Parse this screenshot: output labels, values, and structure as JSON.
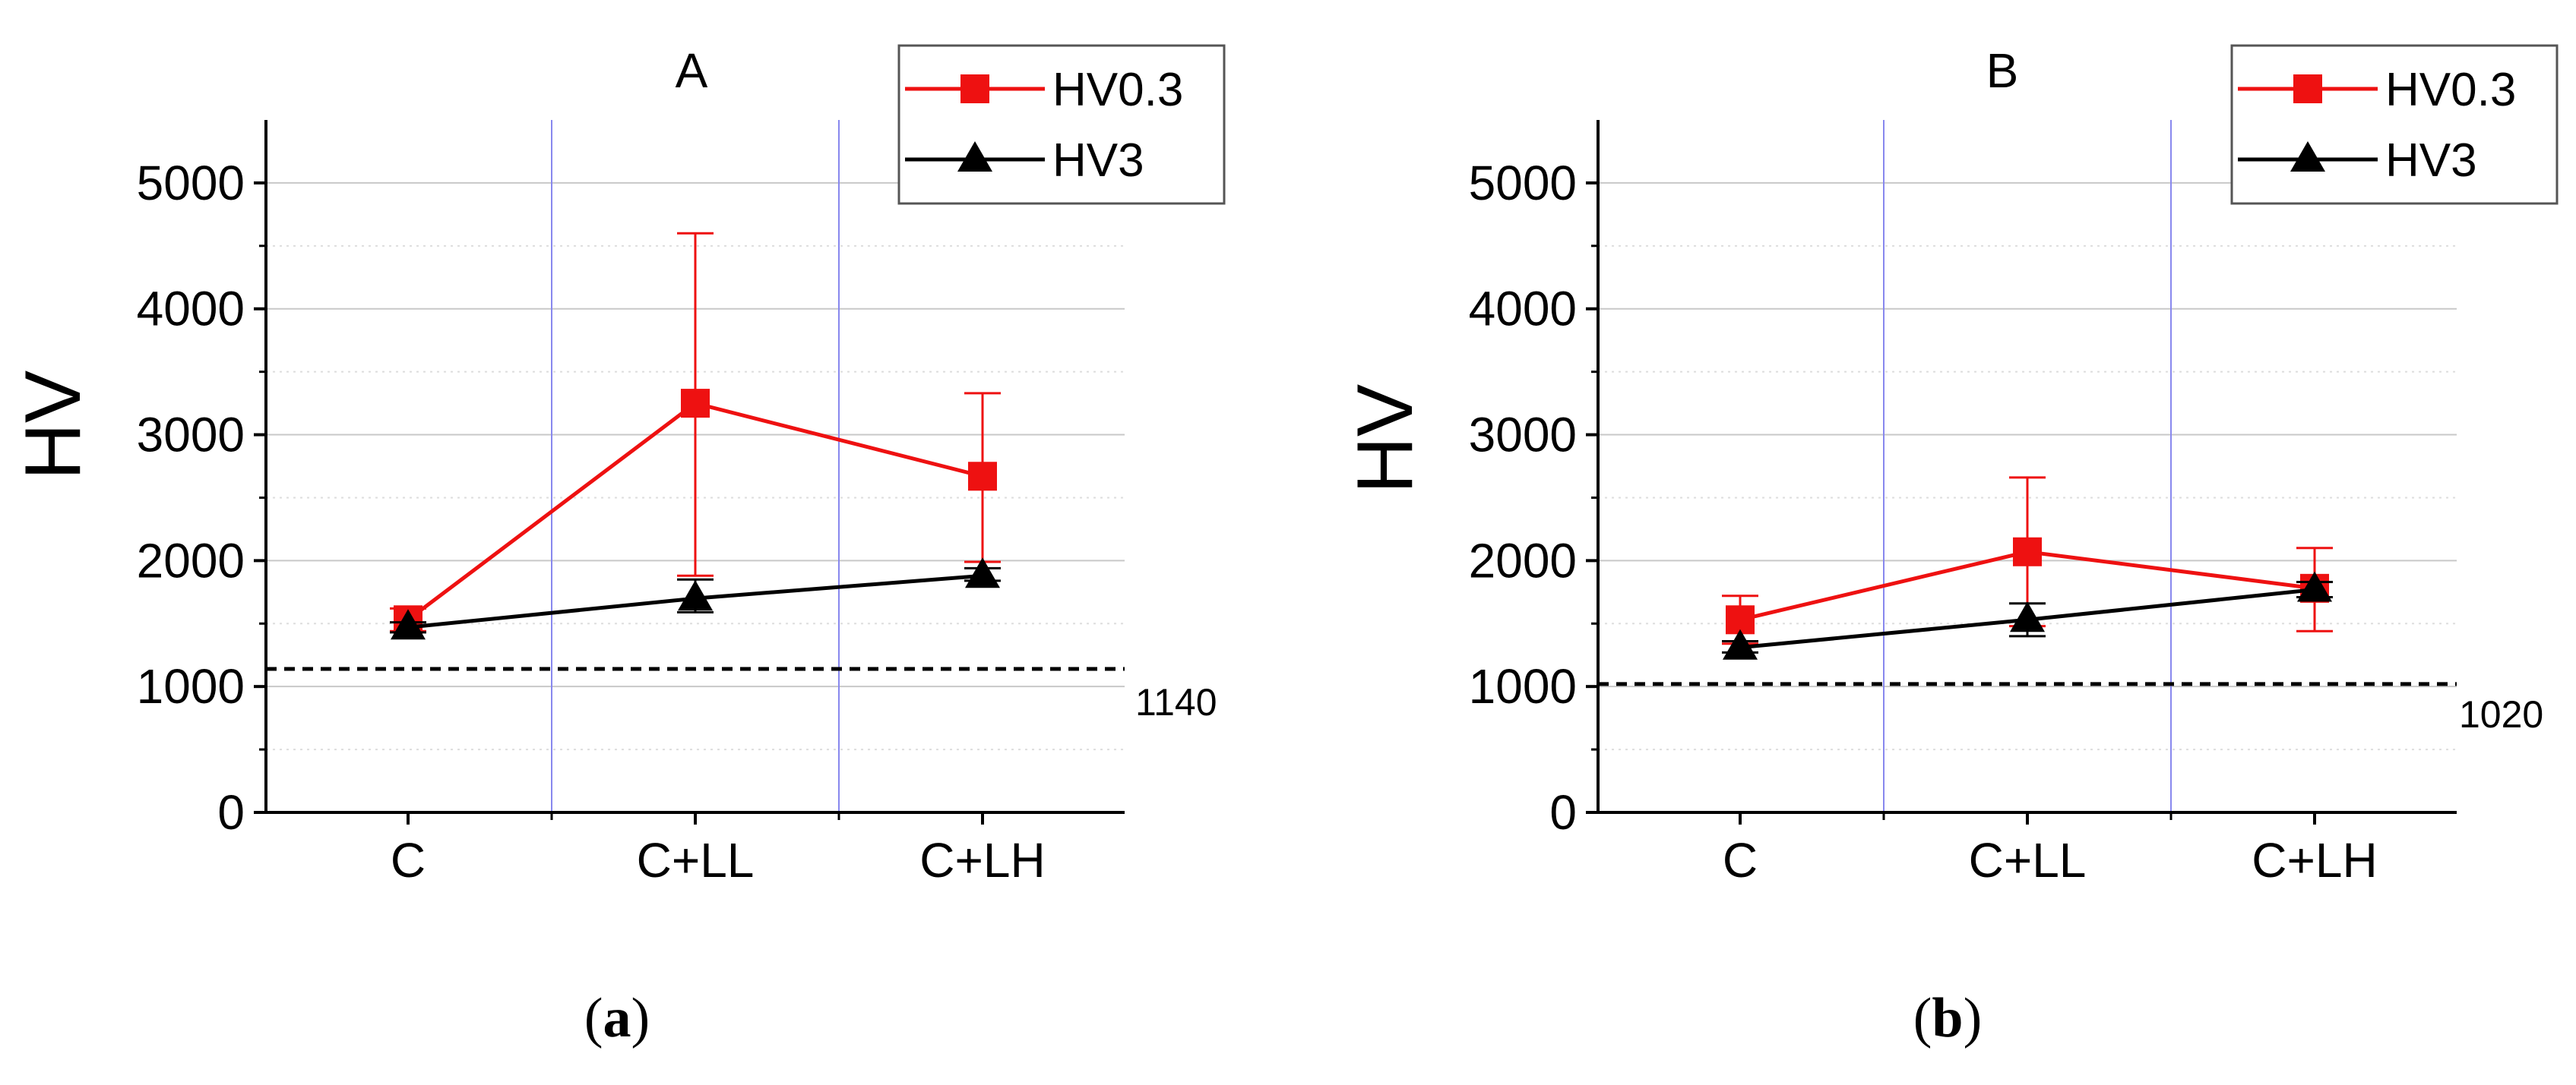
{
  "colors": {
    "hv03": "#ee1111",
    "hv3": "#000000",
    "grid": "#c8c8c8",
    "minor_grid": "#dddddd",
    "separator": "#8888ee",
    "threshold": "#000000",
    "legend_border": "#555555"
  },
  "chart_data": [
    {
      "type": "line",
      "title": "A",
      "caption_open": "(",
      "caption_letter": "a",
      "caption_close": ")",
      "ylabel": "HV",
      "xlabel": "",
      "categories": [
        "C",
        "C+LL",
        "C+LH"
      ],
      "ylim": [
        0,
        5500
      ],
      "yticks": [
        0,
        1000,
        2000,
        3000,
        4000,
        5000
      ],
      "ytick_labels": [
        "0",
        "1000",
        "2000",
        "3000",
        "4000",
        "5000"
      ],
      "minor_yticks": [
        500,
        1500,
        2500,
        3500,
        4500
      ],
      "legend_position": "top-right",
      "series": [
        {
          "name": "HV0.3",
          "marker": "square",
          "color": "#ee1111",
          "values": [
            1530,
            3250,
            2670
          ],
          "err_low": [
            1440,
            1880,
            1990
          ],
          "err_high": [
            1620,
            4600,
            3330
          ]
        },
        {
          "name": "HV3",
          "marker": "triangle",
          "color": "#000000",
          "values": [
            1470,
            1700,
            1880
          ],
          "err_low": [
            1430,
            1590,
            1840
          ],
          "err_high": [
            1510,
            1850,
            1940
          ]
        }
      ],
      "reference_line": {
        "value": 1140,
        "label": "1140"
      }
    },
    {
      "type": "line",
      "title": "B",
      "caption_open": "(",
      "caption_letter": "b",
      "caption_close": ")",
      "ylabel": "HV",
      "xlabel": "",
      "categories": [
        "C",
        "C+LL",
        "C+LH"
      ],
      "ylim": [
        0,
        5500
      ],
      "yticks": [
        0,
        1000,
        2000,
        3000,
        4000,
        5000
      ],
      "ytick_labels": [
        "0",
        "1000",
        "2000",
        "3000",
        "4000",
        "5000"
      ],
      "minor_yticks": [
        500,
        1500,
        2500,
        3500,
        4500
      ],
      "legend_position": "top-right",
      "series": [
        {
          "name": "HV0.3",
          "marker": "square",
          "color": "#ee1111",
          "values": [
            1530,
            2070,
            1780
          ],
          "err_low": [
            1340,
            1480,
            1440
          ],
          "err_high": [
            1720,
            2660,
            2100
          ]
        },
        {
          "name": "HV3",
          "marker": "triangle",
          "color": "#000000",
          "values": [
            1310,
            1530,
            1770
          ],
          "err_low": [
            1270,
            1400,
            1710
          ],
          "err_high": [
            1360,
            1660,
            1830
          ]
        }
      ],
      "reference_line": {
        "value": 1020,
        "label": "1020"
      }
    }
  ]
}
